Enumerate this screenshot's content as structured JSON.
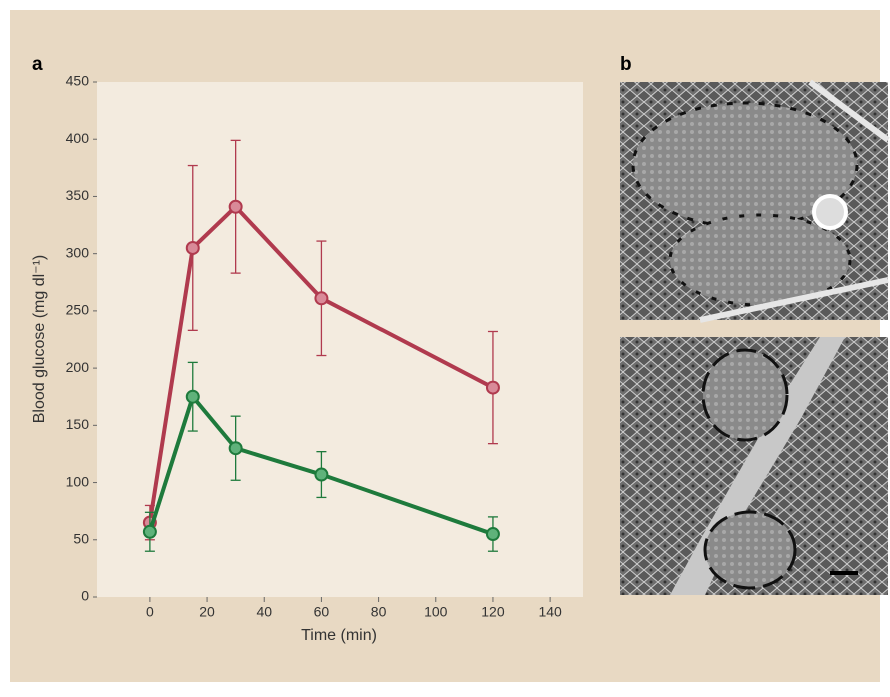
{
  "panel_a_label": "a",
  "panel_b_label": "b",
  "chart_data": {
    "type": "line",
    "x_label": "Time (min)",
    "y_label": "Blood glucose (mg dl⁻¹)",
    "x": [
      0,
      15,
      30,
      60,
      120
    ],
    "series": [
      {
        "color": "#b03a4e",
        "marker_color": "#d98a98",
        "values": [
          65,
          305,
          341,
          261,
          183
        ],
        "errors": [
          15,
          72,
          58,
          50,
          49
        ]
      },
      {
        "color": "#1e7a3c",
        "marker_color": "#5fb27a",
        "values": [
          57,
          175,
          130,
          107,
          55
        ],
        "errors": [
          17,
          30,
          28,
          20,
          15
        ]
      }
    ],
    "xlim": [
      -18.5,
      151.5
    ],
    "xticks": [
      0,
      20,
      40,
      60,
      80,
      100,
      120,
      140
    ],
    "ylim": [
      0,
      450
    ],
    "yticks": [
      0,
      50,
      100,
      150,
      200,
      250,
      300,
      350,
      400,
      450
    ]
  }
}
